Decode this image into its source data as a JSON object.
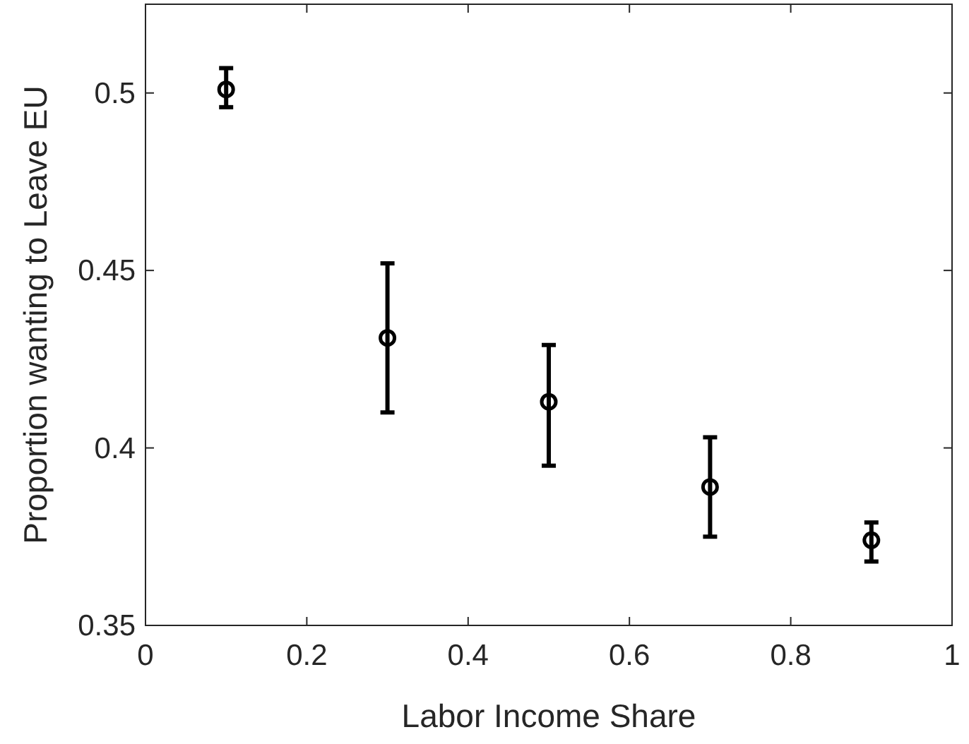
{
  "chart_data": {
    "type": "scatter",
    "xlabel": "Labor Income Share",
    "ylabel": "Proportion wanting to Leave EU",
    "x": [
      0.1,
      0.3,
      0.5,
      0.7,
      0.9
    ],
    "series": [
      {
        "color": "#000000",
        "values": [
          0.501,
          0.431,
          0.413,
          0.389,
          0.374
        ],
        "errors": [
          [
            0.496,
            0.507
          ],
          [
            0.41,
            0.452
          ],
          [
            0.395,
            0.429
          ],
          [
            0.375,
            0.403
          ],
          [
            0.368,
            0.379
          ]
        ]
      }
    ],
    "xlim": [
      0,
      1
    ],
    "xticks": [
      0,
      0.2,
      0.4,
      0.6,
      0.8,
      1
    ],
    "ylim": [
      0.35,
      0.525
    ],
    "yticks": [
      0.35,
      0.4,
      0.45,
      0.5
    ],
    "marker": "circle",
    "grid": false
  }
}
